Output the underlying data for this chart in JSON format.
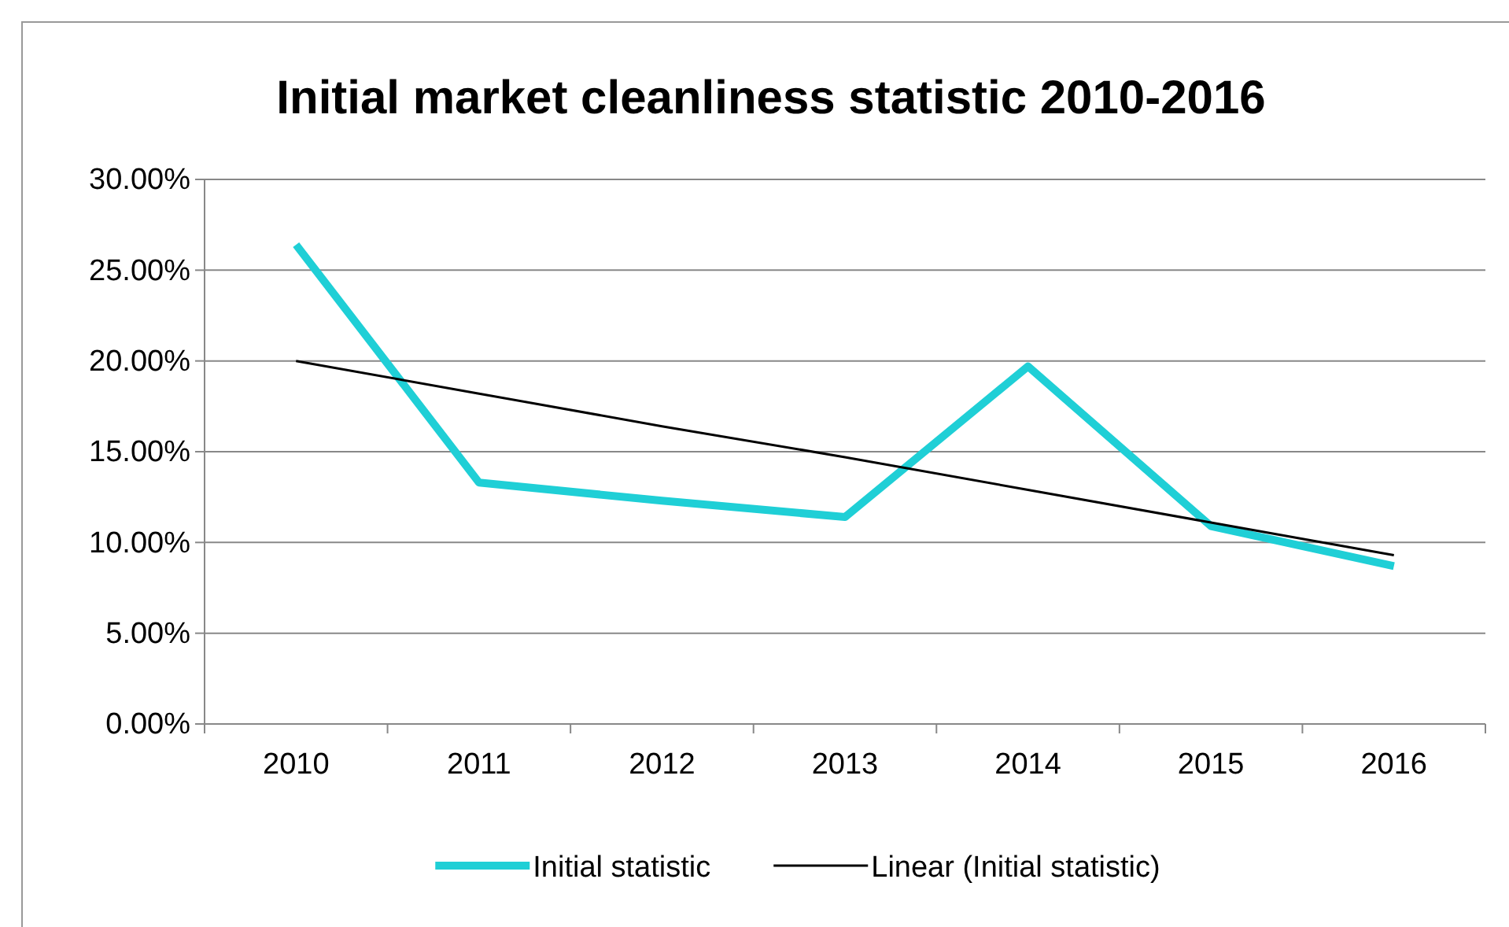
{
  "chart_data": {
    "type": "line",
    "title": "Initial market cleanliness statistic 2010-2016",
    "categories": [
      "2010",
      "2011",
      "2012",
      "2013",
      "2014",
      "2015",
      "2016"
    ],
    "series": [
      {
        "name": "Initial statistic",
        "color": "#1fcfd6",
        "values": [
          26.4,
          13.3,
          12.3,
          11.4,
          19.7,
          10.9,
          8.7
        ]
      },
      {
        "name": "Linear (Initial statistic)",
        "color": "#000000",
        "values": [
          20.0,
          18.2,
          16.4,
          14.7,
          12.9,
          11.1,
          9.3
        ]
      }
    ],
    "ylim": [
      0,
      30
    ],
    "yticks": [
      {
        "value": 0,
        "label": "0.00%"
      },
      {
        "value": 5,
        "label": "5.00%"
      },
      {
        "value": 10,
        "label": "10.00%"
      },
      {
        "value": 15,
        "label": "15.00%"
      },
      {
        "value": 20,
        "label": "20.00%"
      },
      {
        "value": 25,
        "label": "25.00%"
      },
      {
        "value": 30,
        "label": "30.00%"
      }
    ],
    "grid": "y",
    "legend": "bottom",
    "marker": "none"
  }
}
